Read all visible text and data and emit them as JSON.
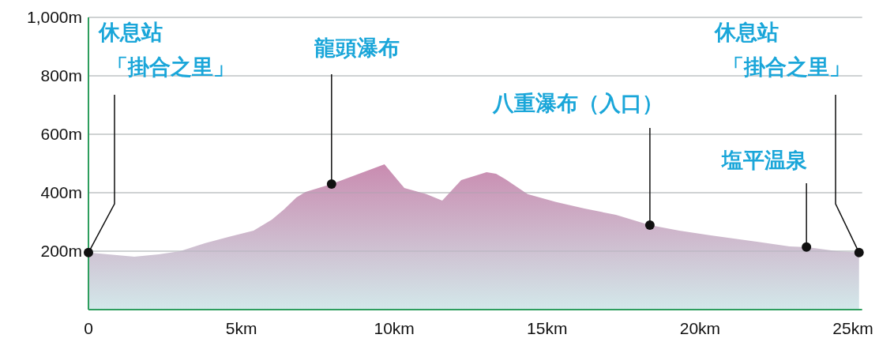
{
  "chart_data": {
    "type": "area",
    "x": [
      0,
      1.0,
      1.5,
      2.3,
      3.0,
      3.8,
      4.6,
      5.4,
      6.0,
      6.4,
      6.8,
      7.1,
      7.95,
      9.68,
      10.33,
      11.05,
      11.57,
      12.19,
      13.02,
      13.33,
      13.64,
      14.36,
      15.29,
      16.22,
      17.25,
      18.36,
      19.32,
      20.35,
      21.9,
      22.93,
      23.48,
      24.48,
      25.2
    ],
    "series": [
      {
        "color": "#c98bb0",
        "values": [
          195,
          186,
          181,
          189,
          200,
          227,
          249,
          270,
          308,
          343,
          384,
          403,
          430,
          497,
          416,
          395,
          373,
          443,
          470,
          465,
          446,
          395,
          368,
          346,
          324,
          289,
          270,
          254,
          232,
          216,
          214,
          200,
          195
        ]
      }
    ],
    "xlim": [
      0,
      25.3
    ],
    "xticks": [
      {
        "value": 0,
        "label": "0"
      },
      {
        "value": 5,
        "label": "5km"
      },
      {
        "value": 10,
        "label": "10km"
      },
      {
        "value": 15,
        "label": "15km"
      },
      {
        "value": 20,
        "label": "20km"
      },
      {
        "value": 25,
        "label": "25km"
      }
    ],
    "ylim": [
      0,
      1000
    ],
    "yticks": [
      {
        "value": 200,
        "label": "200m"
      },
      {
        "value": 400,
        "label": "400m"
      },
      {
        "value": 600,
        "label": "600m"
      },
      {
        "value": 800,
        "label": "800m"
      },
      {
        "value": 1000,
        "label": "1,000m"
      }
    ],
    "grid": "y",
    "annotations": [
      {
        "text": "休息站「掛合之里」",
        "x": 0,
        "y": 195
      },
      {
        "text": "龍頭瀑布",
        "x": 7.95,
        "y": 430
      },
      {
        "text": "八重瀑布（入口）",
        "x": 18.36,
        "y": 289
      },
      {
        "text": "塩平温泉",
        "x": 23.48,
        "y": 214
      },
      {
        "text": "休息站「掛合之里」",
        "x": 25.2,
        "y": 195
      }
    ]
  }
}
